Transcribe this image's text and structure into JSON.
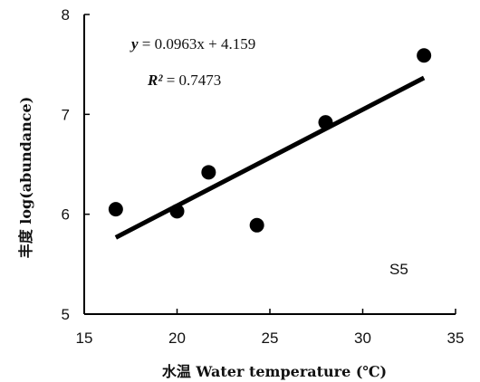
{
  "chart_data": {
    "type": "scatter",
    "xlabel": "水温 Water temperature (℃)",
    "ylabel": "丰度 log(abundance)",
    "xlim": [
      15,
      35
    ],
    "ylim": [
      5,
      8
    ],
    "x_ticks": [
      15,
      20,
      25,
      30,
      35
    ],
    "y_ticks": [
      5,
      6,
      7,
      8
    ],
    "grid": false,
    "points": [
      {
        "x": 16.7,
        "y": 6.05
      },
      {
        "x": 20.0,
        "y": 6.03
      },
      {
        "x": 21.7,
        "y": 6.42
      },
      {
        "x": 24.3,
        "y": 5.89
      },
      {
        "x": 28.0,
        "y": 6.92
      },
      {
        "x": 33.3,
        "y": 7.59
      }
    ],
    "trendline": {
      "slope": 0.0963,
      "intercept": 4.159,
      "x_range": [
        16.7,
        33.3
      ],
      "equation_lhs": "y",
      "equation_rhs": " = 0.0963x + 4.159",
      "r2_label": "R²",
      "r2_text": " = 0.7473"
    },
    "annotation": "S5"
  }
}
